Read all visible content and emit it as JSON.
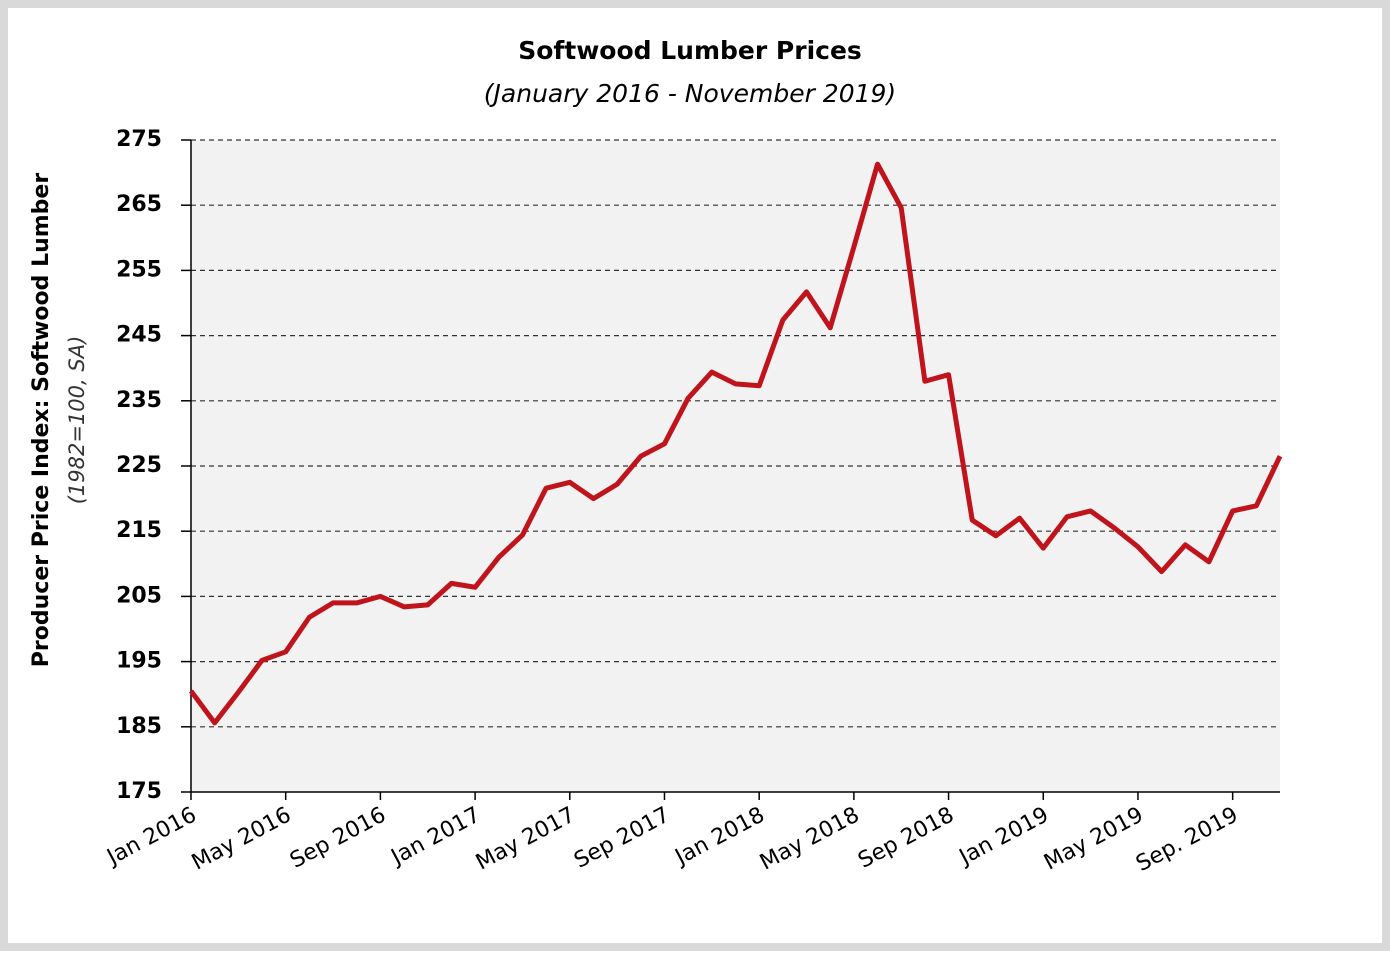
{
  "chart_data": {
    "type": "line",
    "title": "Softwood Lumber Prices",
    "subtitle": "(January 2016 - November 2019)",
    "y_label": "Producer Price Index: Softwood Lumber",
    "y_label_sub": "(1982=100, SA)",
    "categories": [
      "Jan 2016",
      null,
      null,
      null,
      "May 2016",
      null,
      null,
      null,
      "Sep 2016",
      null,
      null,
      null,
      "Jan 2017",
      null,
      null,
      null,
      "May 2017",
      null,
      null,
      null,
      "Sep 2017",
      null,
      null,
      null,
      "Jan 2018",
      null,
      null,
      null,
      "May 2018",
      null,
      null,
      null,
      "Sep 2018",
      null,
      null,
      null,
      "Jan 2019",
      null,
      null,
      null,
      "May 2019",
      null,
      null,
      null,
      "Sep. 2019",
      null,
      null
    ],
    "series": [
      {
        "color": "#c0141c",
        "values": [
          190.5,
          185.6,
          190.3,
          195.2,
          196.5,
          201.8,
          204,
          204,
          205,
          203.4,
          203.7,
          207,
          206.4,
          211,
          214.4,
          221.6,
          222.5,
          220,
          222.2,
          226.5,
          228.4,
          235.4,
          239.4,
          237.6,
          237.3,
          247.4,
          251.7,
          246.2,
          258.6,
          271.3,
          264.6,
          238,
          239,
          216.7,
          214.3,
          217,
          212.4,
          217.2,
          218.1,
          215.5,
          212.6,
          208.8,
          212.9,
          210.3,
          218.1,
          218.9,
          226.5
        ]
      }
    ],
    "ylim": [
      175,
      275
    ],
    "yticks": [
      175,
      185,
      195,
      205,
      215,
      225,
      235,
      245,
      255,
      265,
      275
    ],
    "grid": true
  }
}
